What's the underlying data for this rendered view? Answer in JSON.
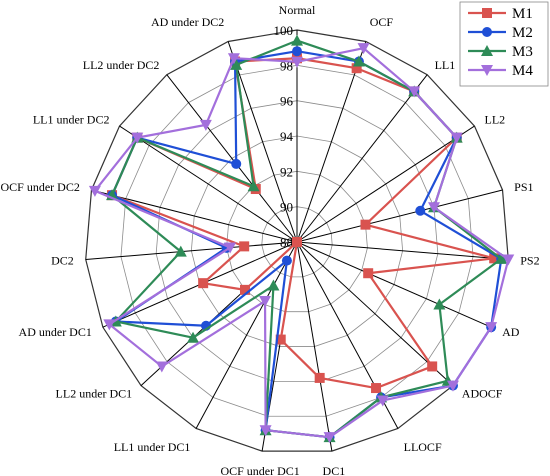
{
  "chart_data": {
    "type": "radar",
    "categories": [
      "Normal",
      "OCF",
      "LL1",
      "LL2",
      "PS1",
      "PS2",
      "AD",
      "ADOCF",
      "LLOCF",
      "DC1",
      "OCF under DC1",
      "LL1 under DC1",
      "LL2 under DC1",
      "AD under DC1",
      "DC2",
      "OCF under DC2",
      "LL1 under DC2",
      "LL2 under DC2",
      "AD under DC2"
    ],
    "r_ticks": [
      "88",
      "90",
      "92",
      "94",
      "96",
      "98",
      "100"
    ],
    "rlim": [
      88,
      100
    ],
    "grid": true,
    "legend_position": "top-right",
    "series": [
      {
        "name": "M1",
        "color": "#d9534f",
        "marker": "square",
        "values": [
          98.4,
          98.4,
          98.8,
          98.8,
          92.0,
          99.2,
          92.4,
          98.4,
          97.4,
          95.8,
          93.6,
          88.0,
          92.0,
          93.8,
          91.0,
          98.8,
          98.8,
          91.8,
          98.8
        ]
      },
      {
        "name": "M2",
        "color": "#1f4fd6",
        "marker": "circle",
        "values": [
          98.8,
          98.8,
          98.8,
          98.8,
          95.2,
          99.6,
          100.0,
          100.0,
          98.0,
          99.2,
          98.8,
          89.2,
          95.0,
          99.2,
          92.0,
          98.8,
          98.8,
          93.6,
          98.8
        ]
      },
      {
        "name": "M3",
        "color": "#2e8b57",
        "marker": "triangle-up",
        "values": [
          99.4,
          98.8,
          98.8,
          98.8,
          96.0,
          99.6,
          96.8,
          99.6,
          98.0,
          99.2,
          98.8,
          90.8,
          96.0,
          99.2,
          94.6,
          98.8,
          98.8,
          92.0,
          98.6
        ]
      },
      {
        "name": "M4",
        "color": "#a36fdc",
        "marker": "triangle-down",
        "values": [
          98.2,
          99.6,
          98.8,
          98.8,
          96.0,
          100.0,
          100.0,
          100.0,
          98.2,
          99.2,
          98.8,
          91.8,
          98.4,
          99.6,
          91.8,
          99.8,
          98.8,
          96.4,
          99.0
        ]
      }
    ]
  }
}
